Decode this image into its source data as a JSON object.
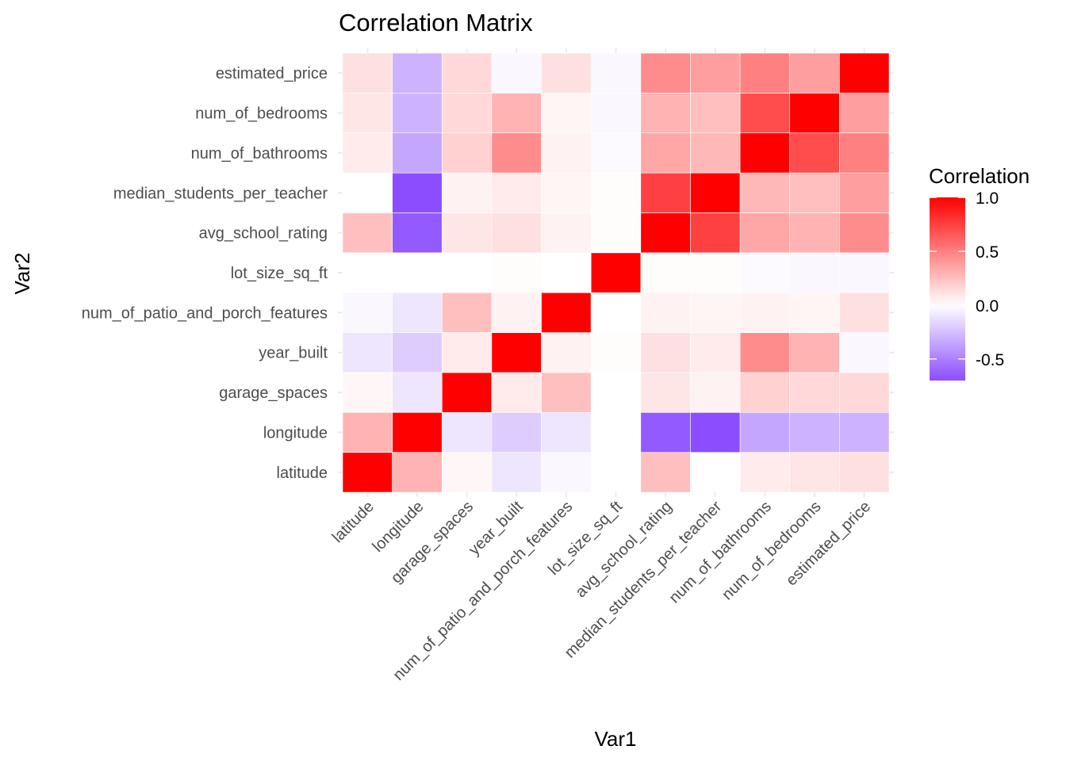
{
  "chart_data": {
    "type": "heatmap",
    "title": "Correlation Matrix",
    "xlabel": "Var1",
    "ylabel": "Var2",
    "variables": [
      "latitude",
      "longitude",
      "garage_spaces",
      "year_built",
      "num_of_patio_and_porch_features",
      "lot_size_sq_ft",
      "avg_school_rating",
      "median_students_per_teacher",
      "num_of_bathrooms",
      "num_of_bedrooms",
      "estimated_price"
    ],
    "matrix": [
      [
        1.0,
        0.3,
        0.03,
        -0.1,
        -0.03,
        0.0,
        0.25,
        0.0,
        0.08,
        0.1,
        0.12
      ],
      [
        0.3,
        1.0,
        -0.1,
        -0.2,
        -0.1,
        0.0,
        -0.65,
        -0.7,
        -0.35,
        -0.3,
        -0.3
      ],
      [
        0.03,
        -0.1,
        1.0,
        0.08,
        0.25,
        0.0,
        0.1,
        0.05,
        0.18,
        0.15,
        0.15
      ],
      [
        -0.1,
        -0.2,
        0.08,
        1.0,
        0.05,
        0.01,
        0.12,
        0.08,
        0.45,
        0.3,
        -0.03
      ],
      [
        -0.03,
        -0.1,
        0.25,
        0.05,
        1.0,
        0.0,
        0.05,
        0.04,
        0.05,
        0.04,
        0.12
      ],
      [
        0.0,
        0.0,
        0.0,
        0.01,
        0.0,
        1.0,
        0.01,
        0.01,
        -0.02,
        -0.03,
        -0.03
      ],
      [
        0.25,
        -0.65,
        0.1,
        0.12,
        0.05,
        0.01,
        1.0,
        0.75,
        0.35,
        0.3,
        0.45
      ],
      [
        0.0,
        -0.7,
        0.05,
        0.08,
        0.04,
        0.01,
        0.75,
        1.0,
        0.28,
        0.25,
        0.38
      ],
      [
        0.08,
        -0.35,
        0.18,
        0.45,
        0.05,
        -0.02,
        0.35,
        0.28,
        1.0,
        0.7,
        0.5
      ],
      [
        0.1,
        -0.3,
        0.15,
        0.3,
        0.04,
        -0.03,
        0.3,
        0.25,
        0.7,
        1.0,
        0.38
      ],
      [
        0.12,
        -0.3,
        0.15,
        -0.03,
        0.12,
        -0.03,
        0.45,
        0.38,
        0.5,
        0.38,
        1.0
      ]
    ],
    "legend": {
      "title": "Correlation",
      "position": "right",
      "ticks": [
        1.0,
        0.5,
        0.0,
        -0.5
      ],
      "tick_labels": [
        "1.0",
        "0.5",
        "0.0",
        "-0.5"
      ],
      "range": [
        -0.7,
        1.0
      ]
    },
    "colors": {
      "high": "#ff0000",
      "mid": "#ffffff",
      "low": "#8b4dff"
    }
  }
}
